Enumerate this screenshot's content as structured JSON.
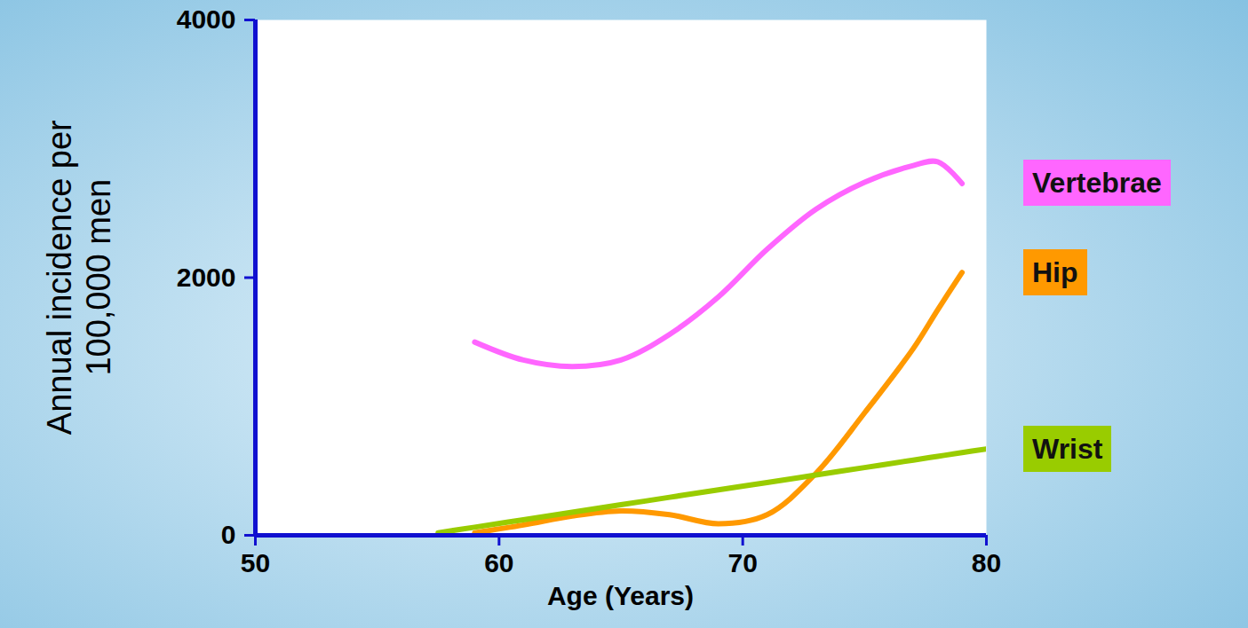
{
  "chart_data": {
    "type": "line",
    "x_label": "Age (Years)",
    "y_label": "Annual incidence per 100,000 men",
    "x": [
      57.5,
      59,
      61,
      63,
      65,
      67,
      69,
      71,
      73,
      75,
      77,
      78,
      79,
      80
    ],
    "series": [
      {
        "name": "Vertebrae",
        "color": "#ff66ff",
        "values": [
          null,
          1500,
          1360,
          1310,
          1360,
          1560,
          1850,
          2220,
          2530,
          2740,
          2870,
          2900,
          2730,
          null
        ]
      },
      {
        "name": "Hip",
        "color": "#ff9900",
        "values": [
          null,
          20,
          80,
          150,
          190,
          160,
          90,
          160,
          480,
          950,
          1450,
          1750,
          2040,
          null
        ]
      },
      {
        "name": "Wrist",
        "color": "#99cc00",
        "values": [
          20,
          63,
          121,
          179,
          237,
          295,
          353,
          410,
          468,
          526,
          584,
          613,
          642,
          670
        ]
      }
    ],
    "xlim": [
      50,
      80
    ],
    "ylim": [
      0,
      4000
    ],
    "xticks": [
      50,
      60,
      70,
      80
    ],
    "yticks": [
      0,
      2000,
      4000
    ],
    "grid": false,
    "legend": "right"
  }
}
